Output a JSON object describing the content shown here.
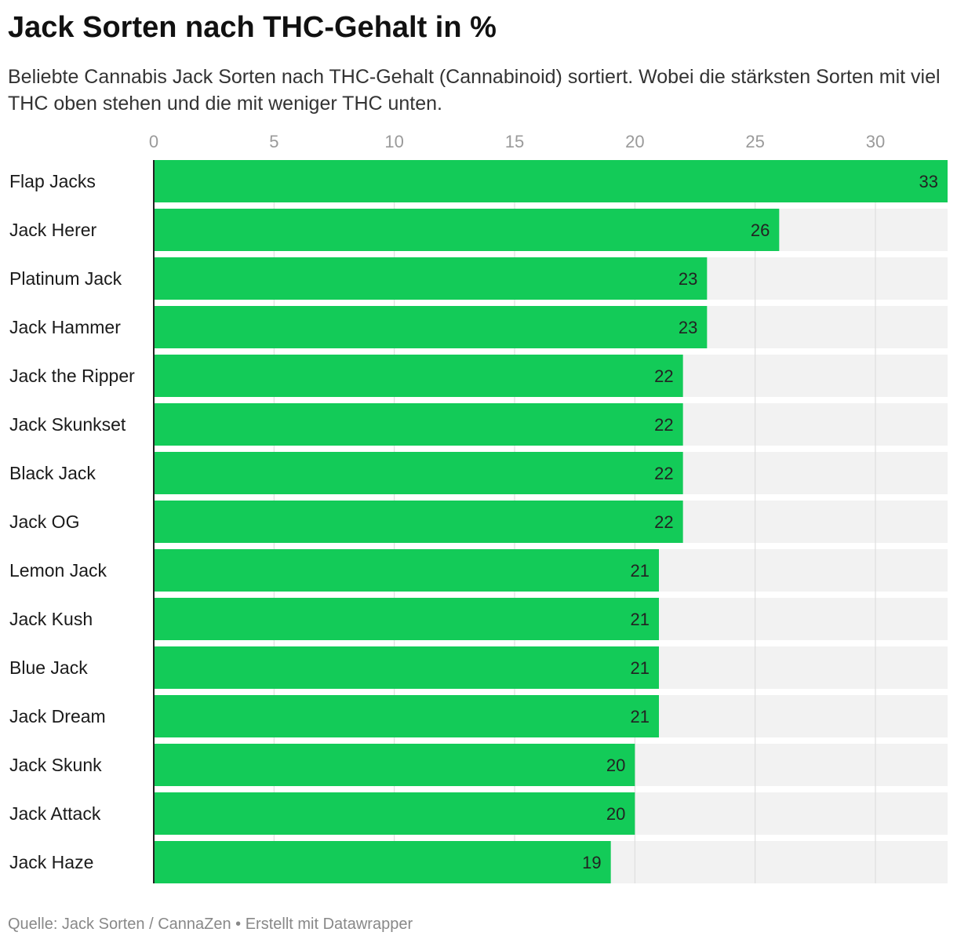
{
  "title": "Jack Sorten nach THC-Gehalt in %",
  "subtitle": "Beliebte Cannabis Jack Sorten nach THC-Gehalt (Cannabinoid) sortiert. Wobei die stärksten Sorten mit viel THC oben stehen und die mit weniger THC unten.",
  "footer": "Quelle: Jack Sorten / CannaZen • Erstellt mit Datawrapper",
  "chart_data": {
    "type": "bar",
    "orientation": "horizontal",
    "title": "Jack Sorten nach THC-Gehalt in %",
    "xlabel": "",
    "ylabel": "",
    "xlim": [
      0,
      33
    ],
    "ticks": [
      0,
      5,
      10,
      15,
      20,
      25,
      30
    ],
    "grid": true,
    "legend": "none",
    "colors": {
      "bar": "#13cb58",
      "track": "#f2f2f2",
      "grid": "#d9d9d9",
      "axis": "#222222",
      "tick_label": "#9a9a9a",
      "value_label": "#222222"
    },
    "categories": [
      "Flap Jacks",
      "Jack Herer",
      "Platinum Jack",
      "Jack Hammer",
      "Jack the Ripper",
      "Jack Skunkset",
      "Black Jack",
      "Jack OG",
      "Lemon Jack",
      "Jack Kush",
      "Blue Jack",
      "Jack Dream",
      "Jack Skunk",
      "Jack Attack",
      "Jack Haze"
    ],
    "values": [
      33,
      26,
      23,
      23,
      22,
      22,
      22,
      22,
      21,
      21,
      21,
      21,
      20,
      20,
      19
    ]
  }
}
